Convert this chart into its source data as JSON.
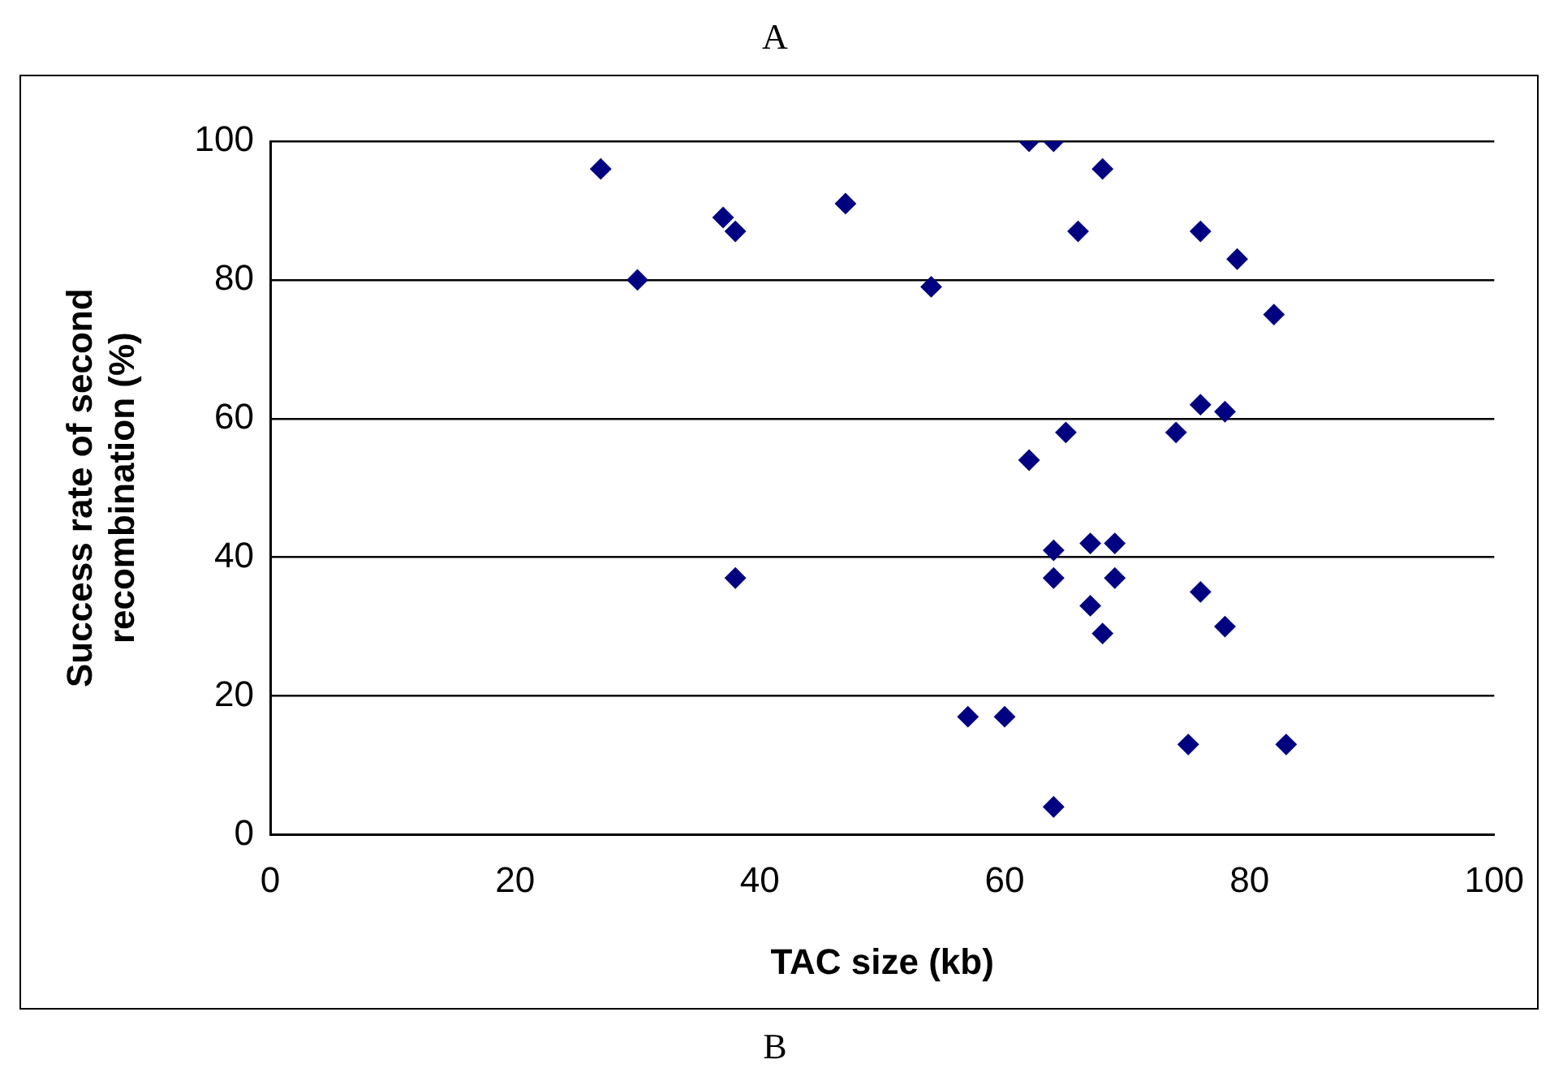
{
  "chart_data": {
    "type": "scatter",
    "title": "A",
    "xlabel": "TAC size (kb)",
    "ylabel": "Success rate of second recombination (%)",
    "annotations": [
      "B"
    ],
    "series": [
      {
        "color": "#000080",
        "x": [
          27,
          30,
          37,
          38,
          47,
          54,
          62,
          64,
          68,
          66,
          76,
          79,
          82,
          65,
          62,
          74,
          76,
          78,
          64,
          67,
          69,
          64,
          69,
          67,
          68,
          76,
          78,
          38,
          57,
          60,
          75,
          83,
          64
        ],
        "values": [
          96,
          80,
          89,
          87,
          91,
          79,
          100,
          100,
          96,
          87,
          87,
          83,
          75,
          58,
          54,
          58,
          62,
          61,
          41,
          42,
          42,
          37,
          37,
          33,
          29,
          35,
          30,
          37,
          17,
          17,
          13,
          13,
          4
        ]
      }
    ],
    "xlim": [
      0,
      100
    ],
    "xticks": [
      0,
      20,
      40,
      60,
      80,
      100
    ],
    "ylim": [
      0,
      100
    ],
    "yticks": [
      0,
      20,
      40,
      60,
      80,
      100
    ],
    "grid": "y",
    "legend": false,
    "marker": "diamond"
  }
}
